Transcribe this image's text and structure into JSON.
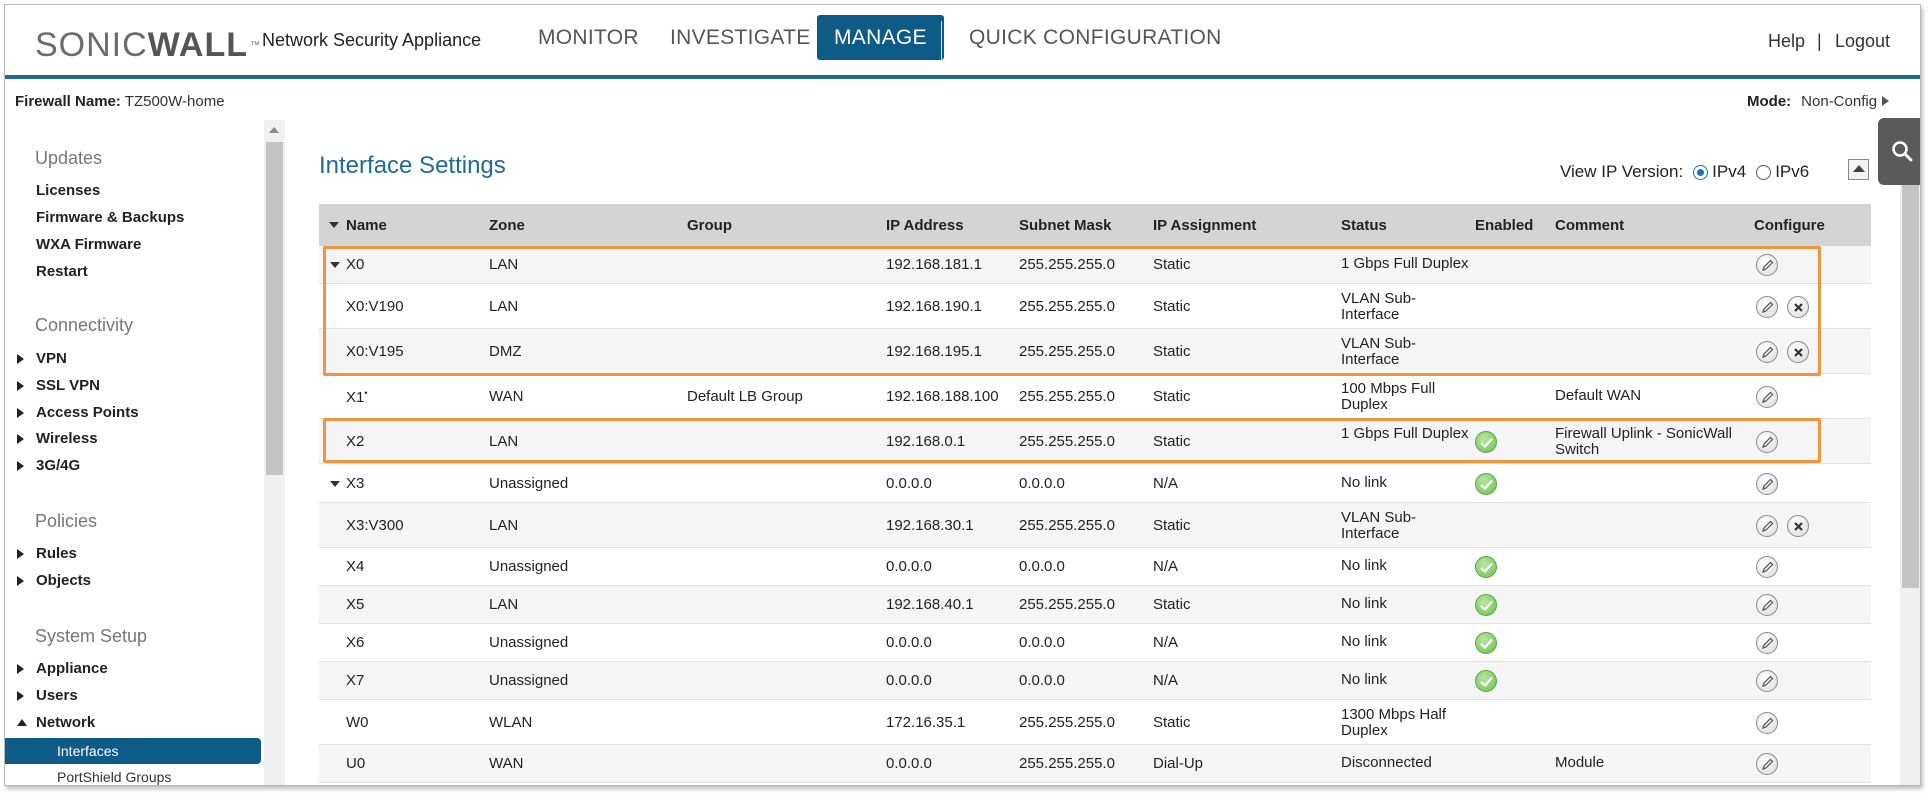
{
  "header": {
    "logo_left": "SONIC",
    "logo_right": "WALL",
    "logo_tm": "™",
    "product": "Network Security Appliance",
    "nav": [
      "MONITOR",
      "INVESTIGATE",
      "MANAGE",
      "QUICK CONFIGURATION"
    ],
    "active_nav": "MANAGE",
    "help": "Help",
    "separator": "|",
    "logout": "Logout"
  },
  "subheader": {
    "firewall_label": "Firewall Name:",
    "firewall_value": "TZ500W-home",
    "mode_label": "Mode:",
    "mode_value": "Non-Config"
  },
  "sidebar": {
    "sections": {
      "updates": "Updates",
      "connectivity": "Connectivity",
      "policies": "Policies",
      "system_setup": "System Setup"
    },
    "items": {
      "licenses": "Licenses",
      "firmware": "Firmware & Backups",
      "wxa": "WXA Firmware",
      "restart": "Restart",
      "vpn": "VPN",
      "ssl_vpn": "SSL VPN",
      "access_points": "Access Points",
      "wireless": "Wireless",
      "3g4g": "3G/4G",
      "rules": "Rules",
      "objects": "Objects",
      "appliance": "Appliance",
      "users": "Users",
      "network": "Network",
      "interfaces": "Interfaces",
      "portshield": "PortShield Groups"
    }
  },
  "main": {
    "title": "Interface Settings",
    "ip_version_label": "View IP Version:",
    "ipv4": "IPv4",
    "ipv6": "IPv6",
    "selected_ip_version": "IPv4"
  },
  "table": {
    "columns": [
      "Name",
      "Zone",
      "Group",
      "IP Address",
      "Subnet Mask",
      "IP Assignment",
      "Status",
      "Enabled",
      "Comment",
      "Configure"
    ],
    "rows": [
      {
        "name": "X0",
        "expand": true,
        "zone": "LAN",
        "group": "",
        "ip": "192.168.181.1",
        "mask": "255.255.255.0",
        "assign": "Static",
        "status": "1 Gbps Full Duplex",
        "enabled": false,
        "comment": "",
        "delete": false
      },
      {
        "name": "X0:V190",
        "expand": false,
        "zone": "LAN",
        "group": "",
        "ip": "192.168.190.1",
        "mask": "255.255.255.0",
        "assign": "Static",
        "status": "VLAN Sub-Interface",
        "enabled": false,
        "comment": "",
        "delete": true
      },
      {
        "name": "X0:V195",
        "expand": false,
        "zone": "DMZ",
        "group": "",
        "ip": "192.168.195.1",
        "mask": "255.255.255.0",
        "assign": "Static",
        "status": "VLAN Sub-Interface",
        "enabled": false,
        "comment": "",
        "delete": true
      },
      {
        "name": "X1",
        "dot": "•",
        "expand": false,
        "zone": "WAN",
        "group": "Default LB Group",
        "ip": "192.168.188.100",
        "mask": "255.255.255.0",
        "assign": "Static",
        "status": "100 Mbps Full Duplex",
        "enabled": false,
        "comment": "Default WAN",
        "delete": false
      },
      {
        "name": "X2",
        "expand": false,
        "zone": "LAN",
        "group": "",
        "ip": "192.168.0.1",
        "mask": "255.255.255.0",
        "assign": "Static",
        "status": "1 Gbps Full Duplex",
        "enabled": true,
        "comment": "Firewall Uplink - SonicWall Switch",
        "delete": false
      },
      {
        "name": "X3",
        "expand": true,
        "zone": "Unassigned",
        "group": "",
        "ip": "0.0.0.0",
        "mask": "0.0.0.0",
        "assign": "N/A",
        "status": "No link",
        "enabled": true,
        "comment": "",
        "delete": false
      },
      {
        "name": "X3:V300",
        "expand": false,
        "zone": "LAN",
        "group": "",
        "ip": "192.168.30.1",
        "mask": "255.255.255.0",
        "assign": "Static",
        "status": "VLAN Sub-Interface",
        "enabled": false,
        "comment": "",
        "delete": true
      },
      {
        "name": "X4",
        "expand": false,
        "zone": "Unassigned",
        "group": "",
        "ip": "0.0.0.0",
        "mask": "0.0.0.0",
        "assign": "N/A",
        "status": "No link",
        "enabled": true,
        "comment": "",
        "delete": false
      },
      {
        "name": "X5",
        "expand": false,
        "zone": "LAN",
        "group": "",
        "ip": "192.168.40.1",
        "mask": "255.255.255.0",
        "assign": "Static",
        "status": "No link",
        "enabled": true,
        "comment": "",
        "delete": false
      },
      {
        "name": "X6",
        "expand": false,
        "zone": "Unassigned",
        "group": "",
        "ip": "0.0.0.0",
        "mask": "0.0.0.0",
        "assign": "N/A",
        "status": "No link",
        "enabled": true,
        "comment": "",
        "delete": false
      },
      {
        "name": "X7",
        "expand": false,
        "zone": "Unassigned",
        "group": "",
        "ip": "0.0.0.0",
        "mask": "0.0.0.0",
        "assign": "N/A",
        "status": "No link",
        "enabled": true,
        "comment": "",
        "delete": false
      },
      {
        "name": "W0",
        "expand": false,
        "zone": "WLAN",
        "group": "",
        "ip": "172.16.35.1",
        "mask": "255.255.255.0",
        "assign": "Static",
        "status": "1300 Mbps Half Duplex",
        "enabled": false,
        "comment": "",
        "delete": false
      },
      {
        "name": "U0",
        "expand": false,
        "zone": "WAN",
        "group": "",
        "ip": "0.0.0.0",
        "mask": "255.255.255.0",
        "assign": "Dial-Up",
        "status": "Disconnected",
        "enabled": false,
        "comment": "Module",
        "delete": false
      }
    ]
  },
  "colors": {
    "brand_blue": "#0d5b86",
    "title_blue": "#1f6a96",
    "highlight_orange": "#f0953e",
    "enabled_green": "#6cbf4a"
  }
}
